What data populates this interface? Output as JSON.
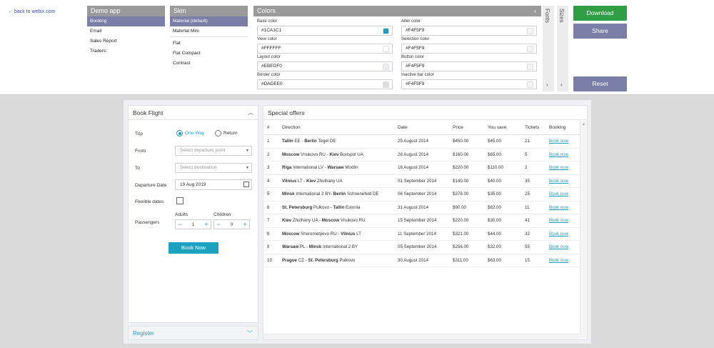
{
  "back_link": "← back to webix.com",
  "demo_app": {
    "title": "Demo app",
    "items": [
      "Booking",
      "Email",
      "Sales Report",
      "Traders"
    ],
    "selected": "Booking"
  },
  "skin": {
    "title": "Skin",
    "items": [
      "Material (default)",
      "Material Mini",
      "Flat",
      "Flat Compact",
      "Contrast"
    ],
    "selected": "Material (default)"
  },
  "colors_panel": {
    "title": "Colors",
    "collapse_icon": "‹",
    "fields": [
      {
        "label": "Base color",
        "value": "#1CA1C1",
        "swatch": "#1CA1C1"
      },
      {
        "label": "View color",
        "value": "#FFFFFF",
        "swatch": "#FFFFFF"
      },
      {
        "label": "Layout color",
        "value": "#EBEDF0",
        "swatch": "#EBEDF0"
      },
      {
        "label": "Border color",
        "value": "#DADEE0",
        "swatch": "#DADEE0"
      },
      {
        "label": "Alter color",
        "value": "#F4F5F9",
        "swatch": "#F4F5F9"
      },
      {
        "label": "Selection color",
        "value": "#F4F5F9",
        "swatch": "#F4F5F9"
      },
      {
        "label": "Button color",
        "value": "#F4F5F9",
        "swatch": "#F4F5F9"
      },
      {
        "label": "Inactive bar color",
        "value": "#F4F5F9",
        "swatch": "#F4F5F9"
      }
    ]
  },
  "fonts_tab": {
    "label": "Fonts",
    "arrow": "›"
  },
  "sizes_tab": {
    "label": "Sizes",
    "arrow": "‹"
  },
  "buttons": {
    "download": "Download",
    "share": "Share",
    "reset": "Reset"
  },
  "book_flight": {
    "title": "Book Flight",
    "trip_label": "Trip",
    "trip_options": [
      "One-Way",
      "Return"
    ],
    "trip_selected": "One-Way",
    "from_label": "From",
    "from_placeholder": "Select departure point",
    "to_label": "To",
    "to_placeholder": "Select destination",
    "departure_label": "Departure Date",
    "departure_value": "19 Aug 2019",
    "flexible_label": "Flexible dates",
    "flexible_checked": false,
    "passengers_label": "Passengers",
    "adults_label": "Adults",
    "adults_value": "1",
    "children_label": "Children",
    "children_value": "0",
    "book_now": "Book Now"
  },
  "register": {
    "title": "Register"
  },
  "special_offers": {
    "title": "Special offers",
    "columns": [
      "#",
      "Direction",
      "Date",
      "Price",
      "You save",
      "Tickets",
      "Booking"
    ],
    "rows": [
      {
        "num": "1",
        "from_city": "Tallin",
        "from_rest": " EE - ",
        "to_city": "Berlin",
        "to_rest": " Tegel DE",
        "date": "25 August 2014",
        "price": "$450.00",
        "save": "$45.00",
        "tickets": "21",
        "book": "Book now"
      },
      {
        "num": "2",
        "from_city": "Moscow",
        "from_rest": " Vnukovo RU - ",
        "to_city": "Kiev",
        "to_rest": " Borispol UA",
        "date": "28 August 2014",
        "price": "$160.00",
        "save": "$65.00",
        "tickets": "5",
        "book": "Book now"
      },
      {
        "num": "3",
        "from_city": "Riga",
        "from_rest": " International LV - ",
        "to_city": "Warsaw",
        "to_rest": " Modlin",
        "date": "16 August 2014",
        "price": "$220.00",
        "save": "$110.00",
        "tickets": "2",
        "book": "Book now"
      },
      {
        "num": "4",
        "from_city": "Vilnius",
        "from_rest": " LT - ",
        "to_city": "Kiev",
        "to_rest": " Zhulhany UA",
        "date": "01 September 2014",
        "price": "$140.00",
        "save": "$40.00",
        "tickets": "35",
        "book": "Book now"
      },
      {
        "num": "5",
        "from_city": "Minsk",
        "from_rest": " International 2 BY- ",
        "to_city": "Berlin",
        "to_rest": " Schoenefeld DE",
        "date": "06 September 2014",
        "price": "$378.00",
        "save": "$35.00",
        "tickets": "25",
        "book": "Book now"
      },
      {
        "num": "6",
        "from_city": "St. Petersburg",
        "from_rest": " Pulkovo - ",
        "to_city": "Tallin",
        "to_rest": " Estonia",
        "date": "31 August 2014",
        "price": "$90.00",
        "save": "$82.00",
        "tickets": "11",
        "book": "Book now"
      },
      {
        "num": "7",
        "from_city": "Kiev",
        "from_rest": " Zhulhany UA - ",
        "to_city": "Moscow",
        "to_rest": " Vnukovo RU",
        "date": "15 September 2014",
        "price": "$220.00",
        "save": "$30.00",
        "tickets": "41",
        "book": "Book now"
      },
      {
        "num": "8",
        "from_city": "Moscow",
        "from_rest": " Sheremetyevo RU - ",
        "to_city": "Vilnius",
        "to_rest": " LT",
        "date": "11 September 2014",
        "price": "$321.00",
        "save": "$44.00",
        "tickets": "32",
        "book": "Book now"
      },
      {
        "num": "9",
        "from_city": "Warsaw",
        "from_rest": " PL - ",
        "to_city": "Minsk",
        "to_rest": " International 2 BY",
        "date": "05 September 2014",
        "price": "$256.00",
        "save": "$32.00",
        "tickets": "55",
        "book": "Book now"
      },
      {
        "num": "10",
        "from_city": "Prague",
        "from_rest": " CZ - ",
        "to_city": "St. Petersburg",
        "to_rest": " Pulkovo",
        "date": "30 August 2014",
        "price": "$311.00",
        "save": "$63.00",
        "tickets": "15",
        "book": "Book now"
      }
    ]
  },
  "colors": {
    "accent": "#1CA1C1",
    "purple": "#7B7FA7",
    "green": "#2F9E44"
  }
}
